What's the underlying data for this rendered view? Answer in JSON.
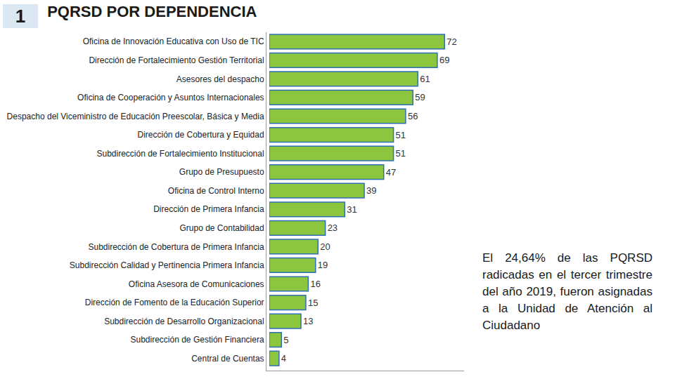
{
  "chart_data": {
    "type": "bar",
    "title": "PQRSD POR DEPENDENCIA",
    "orientation": "horizontal",
    "categories": [
      "Oficina de Innovación Educativa con Uso de TIC",
      "Dirección de Fortalecimiento Gestión Territorial",
      "Asesores del despacho",
      "Oficina de Cooperación y Asuntos Internacionales",
      "Despacho del Viceministro de Educación Preescolar, Básica y Media",
      "Dirección de Cobertura y Equidad",
      "Subdirección de Fortalecimiento Institucional",
      "Grupo de Presupuesto",
      "Oficina de Control Interno",
      "Dirección de Primera Infancia",
      "Grupo de Contabilidad",
      "Subdirección de Cobertura de Primera Infancia",
      "Subdirección Calidad y Pertinencia Primera Infancia",
      "Oficina Asesora de Comunicaciones",
      "Dirección de Fomento de la Educación Superior",
      "Subdirección de Desarrollo Organizacional",
      "Subdirección de Gestión Financiera",
      "Central de Cuentas"
    ],
    "values": [
      72,
      69,
      61,
      59,
      56,
      51,
      51,
      47,
      39,
      31,
      23,
      20,
      19,
      16,
      15,
      13,
      5,
      4
    ],
    "color": "#8cc63f",
    "data_labels": true,
    "tick_labels": "y",
    "grid": false,
    "xlim": [
      0,
      80
    ],
    "xticks": [],
    "annotations": [
      "1",
      "El 24,64% de las PQRSD radicadas en el tercer trimestre del año 2019, fueron asignadas a la Unidad de Atención al Ciudadano"
    ]
  }
}
